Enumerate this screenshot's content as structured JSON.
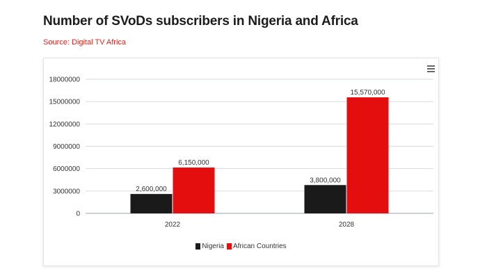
{
  "header": {
    "title": "Number of SVoDs subscribers in Nigeria and Africa",
    "source": "Source: Digital TV Africa"
  },
  "menu_icon": "hamburger-menu-icon",
  "chart_data": {
    "type": "bar",
    "categories": [
      "2022",
      "2028"
    ],
    "series": [
      {
        "name": "Nigeria",
        "values": [
          2600000,
          3800000
        ],
        "color": "#1a1a1a",
        "labels": [
          "2,600,000",
          "3,800,000"
        ]
      },
      {
        "name": "African Countries",
        "values": [
          6150000,
          15570000
        ],
        "color": "#e50e0e",
        "labels": [
          "6,150,000",
          "15,570,000"
        ]
      }
    ],
    "ylim": [
      0,
      18000000
    ],
    "yticks": [
      "0",
      "3000000",
      "6000000",
      "9000000",
      "12000000",
      "15000000",
      "18000000"
    ],
    "grid": true,
    "legend_position": "bottom-center"
  }
}
